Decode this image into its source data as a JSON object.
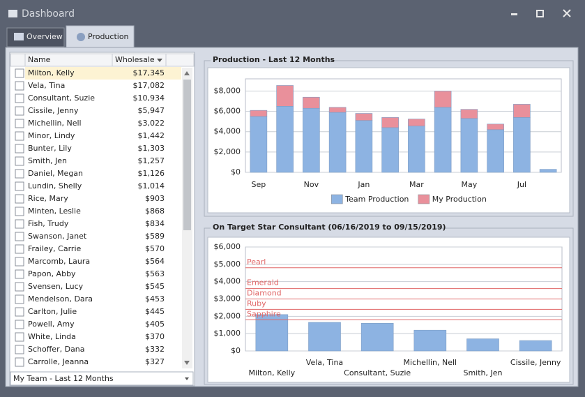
{
  "window": {
    "title": "Dashboard"
  },
  "tabs": [
    "Overview",
    "Production"
  ],
  "table": {
    "columns": [
      "Name",
      "Wholesale"
    ],
    "rows": [
      [
        "Milton, Kelly",
        "$17,345"
      ],
      [
        "Vela, Tina",
        "$17,082"
      ],
      [
        "Consultant, Suzie",
        "$10,934"
      ],
      [
        "Cissile, Jenny",
        "$5,947"
      ],
      [
        "Michellin, Nell",
        "$3,022"
      ],
      [
        "Minor, Lindy",
        "$1,442"
      ],
      [
        "Bunter, Lily",
        "$1,303"
      ],
      [
        "Smith, Jen",
        "$1,257"
      ],
      [
        "Daniel, Megan",
        "$1,126"
      ],
      [
        "Lundin, Shelly",
        "$1,014"
      ],
      [
        "Rice, Mary",
        "$903"
      ],
      [
        "Minten, Leslie",
        "$868"
      ],
      [
        "Fish, Trudy",
        "$834"
      ],
      [
        "Swanson, Janet",
        "$589"
      ],
      [
        "Frailey, Carrie",
        "$570"
      ],
      [
        "Marcomb, Laura",
        "$564"
      ],
      [
        "Papon, Abby",
        "$563"
      ],
      [
        "Svensen, Lucy",
        "$545"
      ],
      [
        "Mendelson, Dara",
        "$453"
      ],
      [
        "Carlton, Julie",
        "$445"
      ],
      [
        "Powell, Amy",
        "$405"
      ],
      [
        "White, Linda",
        "$370"
      ],
      [
        "Schoffer, Dana",
        "$332"
      ],
      [
        "Carrolle, Jeanna",
        "$327"
      ]
    ]
  },
  "dropdown": "My Team - Last 12 Months",
  "chart_data": [
    {
      "type": "bar",
      "stacked": true,
      "title": "Production - Last 12 Months",
      "categories": [
        "Sep",
        null,
        "Nov",
        null,
        "Jan",
        null,
        "Mar",
        null,
        "May",
        null,
        "Jul",
        null
      ],
      "series": [
        {
          "name": "Team Production",
          "color": "#8db3e2",
          "values": [
            5500,
            6500,
            6300,
            5900,
            5100,
            4400,
            4550,
            6400,
            5300,
            4200,
            5400,
            300
          ]
        },
        {
          "name": "My Production",
          "color": "#e9909b",
          "values": [
            600,
            2050,
            1100,
            500,
            700,
            1000,
            700,
            1600,
            900,
            550,
            1300,
            0
          ]
        }
      ],
      "ylim": [
        0,
        9200
      ],
      "yticks": [
        {
          "value": 0,
          "label": "$0"
        },
        {
          "value": 2000,
          "label": "$2,000"
        },
        {
          "value": 4000,
          "label": "$4,000"
        },
        {
          "value": 6000,
          "label": "$6,000"
        },
        {
          "value": 8000,
          "label": "$8,000"
        }
      ],
      "grid": true,
      "legend": "bottom"
    },
    {
      "type": "bar",
      "title": "On Target Star Consultant (06/16/2019 to 09/15/2019)",
      "categories": [
        "Milton, Kelly",
        "Vela, Tina",
        "Consultant, Suzie",
        "Michellin, Nell",
        "Smith, Jen",
        "Cissile, Jenny"
      ],
      "series": [
        {
          "color": "#8db3e2",
          "values": [
            2100,
            1650,
            1600,
            1200,
            700,
            600
          ]
        }
      ],
      "reference_lines": [
        {
          "label": "Pearl",
          "value": 4800,
          "color": "#e06666"
        },
        {
          "label": "Emerald",
          "value": 3600,
          "color": "#e06666"
        },
        {
          "label": "Diamond",
          "value": 3000,
          "color": "#e06666"
        },
        {
          "label": "Ruby",
          "value": 2400,
          "color": "#e06666"
        },
        {
          "label": "Sapphire",
          "value": 1800,
          "color": "#e06666"
        }
      ],
      "ylim": [
        0,
        6000
      ],
      "yticks": [
        {
          "value": 0,
          "label": "$0"
        },
        {
          "value": 1000,
          "label": "$1,000"
        },
        {
          "value": 2000,
          "label": "$2,000"
        },
        {
          "value": 3000,
          "label": "$3,000"
        },
        {
          "value": 4000,
          "label": "$4,000"
        },
        {
          "value": 5000,
          "label": "$5,000"
        },
        {
          "value": 6000,
          "label": "$6,000"
        }
      ],
      "grid": true
    }
  ]
}
